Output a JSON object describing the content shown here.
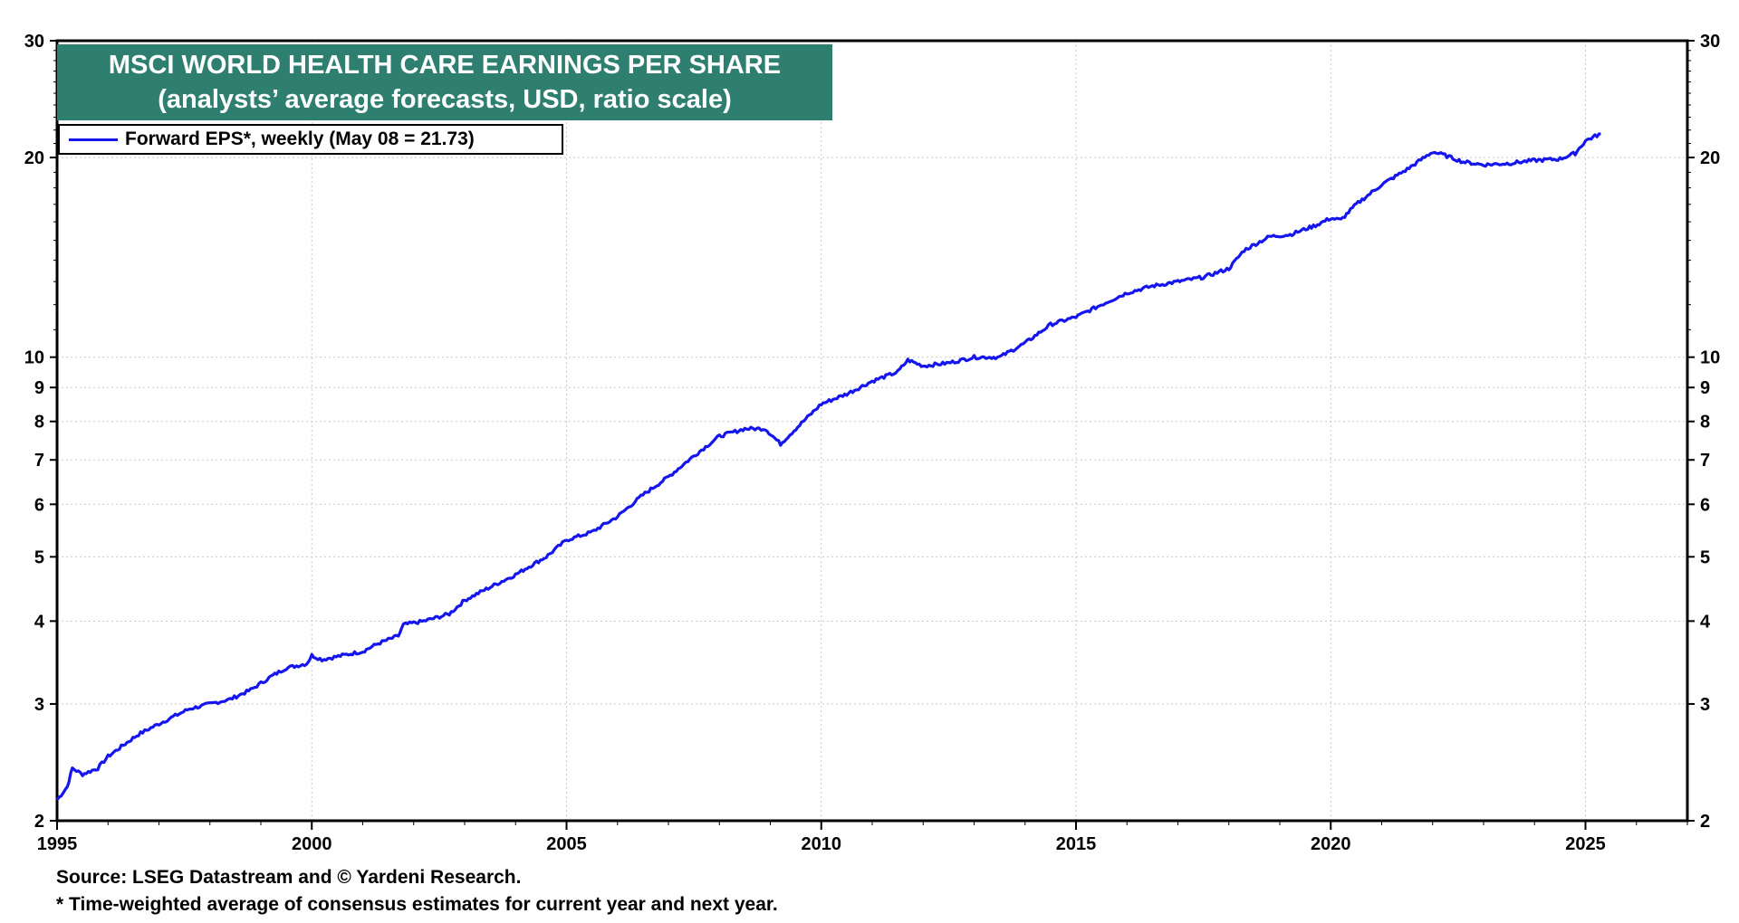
{
  "colors": {
    "line": "#1515ee",
    "title_bg": "#2e7f6f",
    "grid": "#c8c8c8"
  },
  "chart_data": {
    "type": "line",
    "title": "MSCI WORLD HEALTH CARE EARNINGS PER SHARE",
    "subtitle": "(analysts’ average forecasts, USD, ratio scale)",
    "y_scale": "log",
    "ylim": [
      2,
      30
    ],
    "xlim": [
      1995,
      2027
    ],
    "y_ticks": [
      2,
      3,
      4,
      5,
      6,
      7,
      8,
      9,
      10,
      20,
      30
    ],
    "y_tick_labels": [
      "2",
      "3",
      "4",
      "5",
      "6",
      "7",
      "8",
      "9",
      "10",
      "20",
      "30"
    ],
    "x_ticks": [
      1995,
      2000,
      2005,
      2010,
      2015,
      2020,
      2025
    ],
    "x_tick_labels": [
      "1995",
      "2000",
      "2005",
      "2010",
      "2015",
      "2020",
      "2025"
    ],
    "grid": true,
    "legend_position": "top-left",
    "series": [
      {
        "name": "Forward EPS*, weekly (May 08 = 21.73)",
        "x": [
          1995.0,
          1995.2,
          1995.3,
          1995.5,
          1995.8,
          1996.0,
          1996.3,
          1996.6,
          1997.0,
          1997.4,
          1997.6,
          1998.0,
          1998.4,
          1998.8,
          1999.2,
          1999.5,
          1999.9,
          2000.0,
          2000.2,
          2000.6,
          2001.0,
          2001.3,
          2001.7,
          2001.8,
          2002.2,
          2002.7,
          2003.0,
          2003.5,
          2004.0,
          2004.3,
          2004.6,
          2005.0,
          2005.5,
          2006.0,
          2006.5,
          2007.0,
          2007.5,
          2008.0,
          2008.5,
          2008.9,
          2009.2,
          2009.5,
          2010.0,
          2010.5,
          2011.0,
          2011.5,
          2011.7,
          2012.0,
          2012.5,
          2013.0,
          2013.5,
          2014.0,
          2014.5,
          2015.0,
          2015.5,
          2016.0,
          2016.5,
          2017.0,
          2017.5,
          2018.0,
          2018.3,
          2018.8,
          2019.2,
          2019.7,
          2020.0,
          2020.2,
          2020.5,
          2021.0,
          2021.5,
          2022.0,
          2022.2,
          2022.6,
          2023.0,
          2023.5,
          2024.0,
          2024.5,
          2024.8,
          2025.0,
          2025.3
        ],
        "values": [
          2.15,
          2.25,
          2.4,
          2.35,
          2.4,
          2.5,
          2.6,
          2.7,
          2.8,
          2.9,
          2.95,
          3.0,
          3.05,
          3.15,
          3.3,
          3.4,
          3.45,
          3.55,
          3.5,
          3.55,
          3.6,
          3.7,
          3.8,
          3.95,
          4.0,
          4.1,
          4.3,
          4.5,
          4.7,
          4.85,
          5.0,
          5.3,
          5.45,
          5.75,
          6.2,
          6.6,
          7.1,
          7.6,
          7.8,
          7.8,
          7.4,
          7.8,
          8.5,
          8.8,
          9.2,
          9.5,
          9.9,
          9.7,
          9.8,
          10.0,
          10.0,
          10.5,
          11.2,
          11.5,
          12.0,
          12.5,
          12.8,
          13.0,
          13.2,
          13.6,
          14.5,
          15.2,
          15.3,
          15.8,
          16.2,
          16.1,
          17.0,
          18.2,
          19.2,
          20.4,
          20.2,
          19.7,
          19.5,
          19.6,
          19.8,
          19.9,
          20.3,
          21.2,
          21.73
        ]
      }
    ],
    "source": "Source: LSEG Datastream and © Yardeni Research.",
    "footnote": "* Time-weighted average of consensus estimates for current year and next year."
  }
}
